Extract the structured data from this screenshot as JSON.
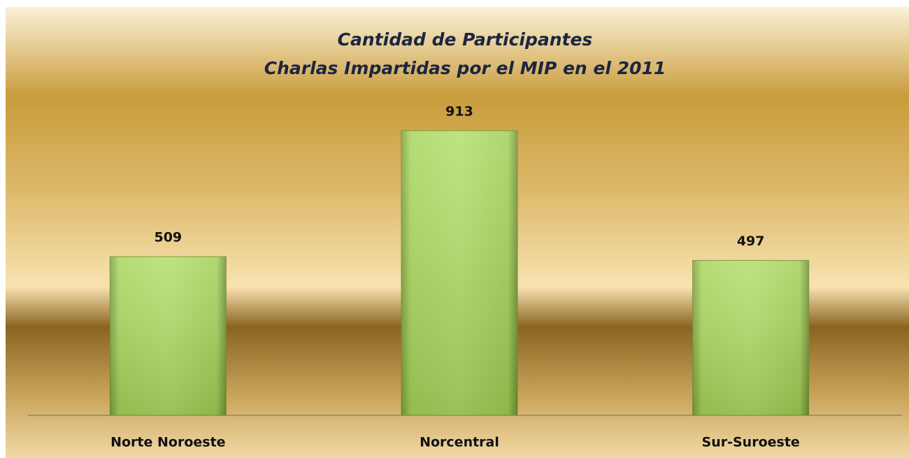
{
  "chart_data": {
    "type": "bar",
    "title": "Cantidad de Participantes",
    "subtitle": "Charlas Impartidas por el MIP en el 2011",
    "categories": [
      "Norte Noroeste",
      "Norcentral",
      "Sur-Suroeste"
    ],
    "values": [
      509,
      913,
      497
    ],
    "color": "#9fcb55"
  }
}
